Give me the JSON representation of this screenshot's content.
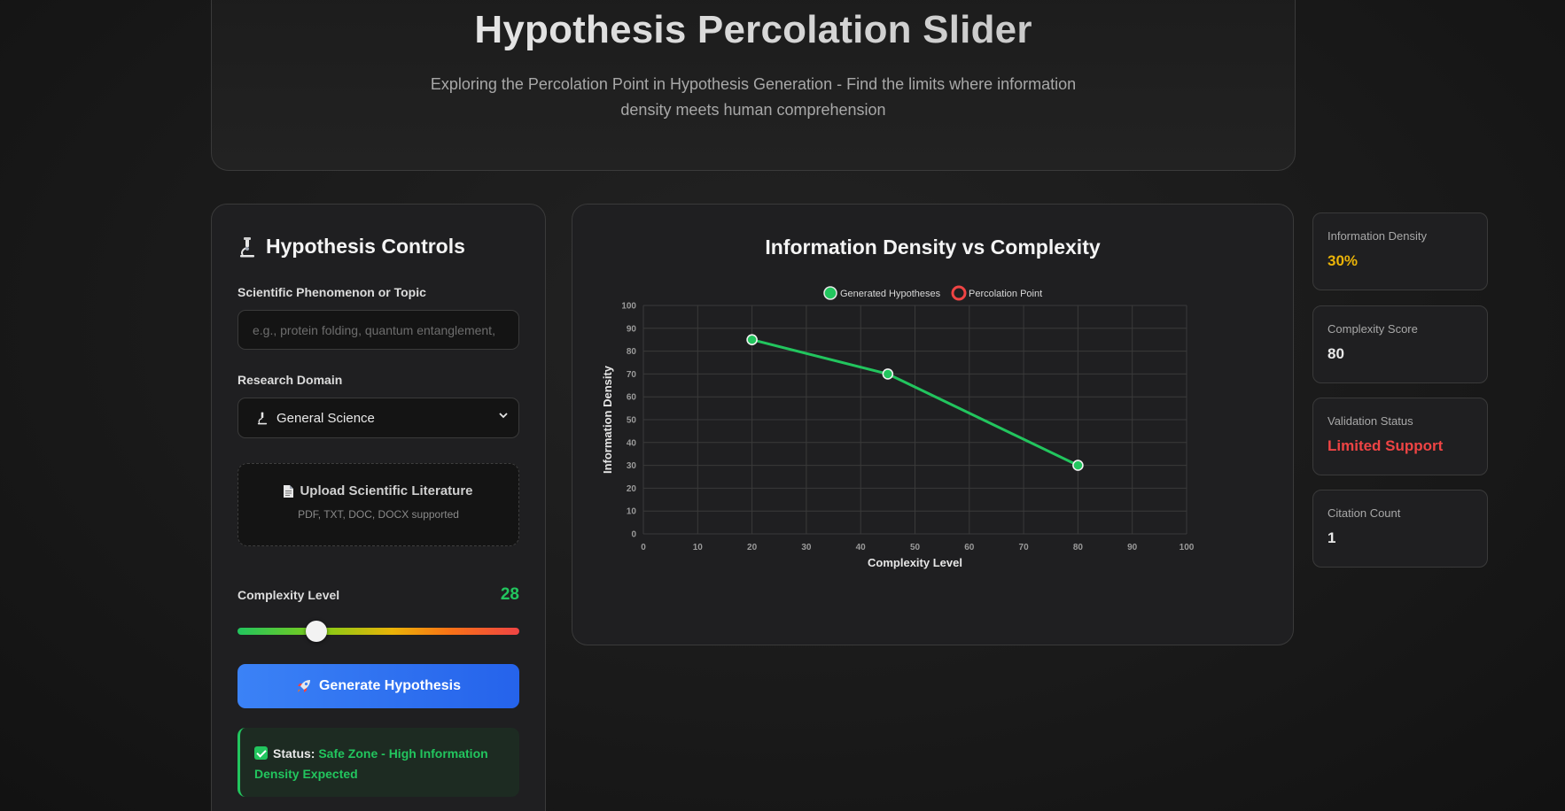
{
  "header": {
    "title": "Hypothesis Percolation Slider",
    "subtitle": "Exploring the Percolation Point in Hypothesis Generation - Find the limits where information density meets human comprehension"
  },
  "controls": {
    "title": "Hypothesis Controls",
    "topic_label": "Scientific Phenomenon or Topic",
    "topic_placeholder": "e.g., protein folding, quantum entanglement,",
    "topic_value": "",
    "domain_label": "Research Domain",
    "domain_value": "General Science",
    "upload_title": "Upload Scientific Literature",
    "upload_subtitle": "PDF, TXT, DOC, DOCX supported",
    "complexity_label": "Complexity Level",
    "complexity_value": "28",
    "complexity_fraction": 0.28,
    "generate_label": "Generate Hypothesis",
    "status_key": "Status:",
    "status_text": "Safe Zone - High Information Density Expected"
  },
  "chart": {
    "title": "Information Density vs Complexity"
  },
  "chart_data": {
    "type": "line",
    "title": "Information Density vs Complexity",
    "xlabel": "Complexity Level",
    "ylabel": "Information Density",
    "xlim": [
      0,
      100
    ],
    "ylim": [
      0,
      100
    ],
    "x_ticks": [
      0,
      10,
      20,
      30,
      40,
      50,
      60,
      70,
      80,
      90,
      100
    ],
    "y_ticks": [
      0,
      10,
      20,
      30,
      40,
      50,
      60,
      70,
      80,
      90,
      100
    ],
    "grid": true,
    "legend_position": "top-center",
    "series": [
      {
        "name": "Generated Hypotheses",
        "color": "#22c55e",
        "x": [
          20,
          45,
          80
        ],
        "y": [
          85,
          70,
          30
        ]
      },
      {
        "name": "Percolation Point",
        "color": "#ef4444",
        "x": [],
        "y": []
      }
    ]
  },
  "stats": [
    {
      "label": "Information Density",
      "value": "30%",
      "color": "#eab308"
    },
    {
      "label": "Complexity Score",
      "value": "80",
      "color": "#e8e8e8"
    },
    {
      "label": "Validation Status",
      "value": "Limited Support",
      "color": "#ef4444"
    },
    {
      "label": "Citation Count",
      "value": "1",
      "color": "#e8e8e8"
    }
  ],
  "icons": {
    "controls_title": "microscope-icon",
    "domain": "microscope-icon",
    "upload": "document-icon",
    "generate": "rocket-icon",
    "status": "check-icon"
  }
}
